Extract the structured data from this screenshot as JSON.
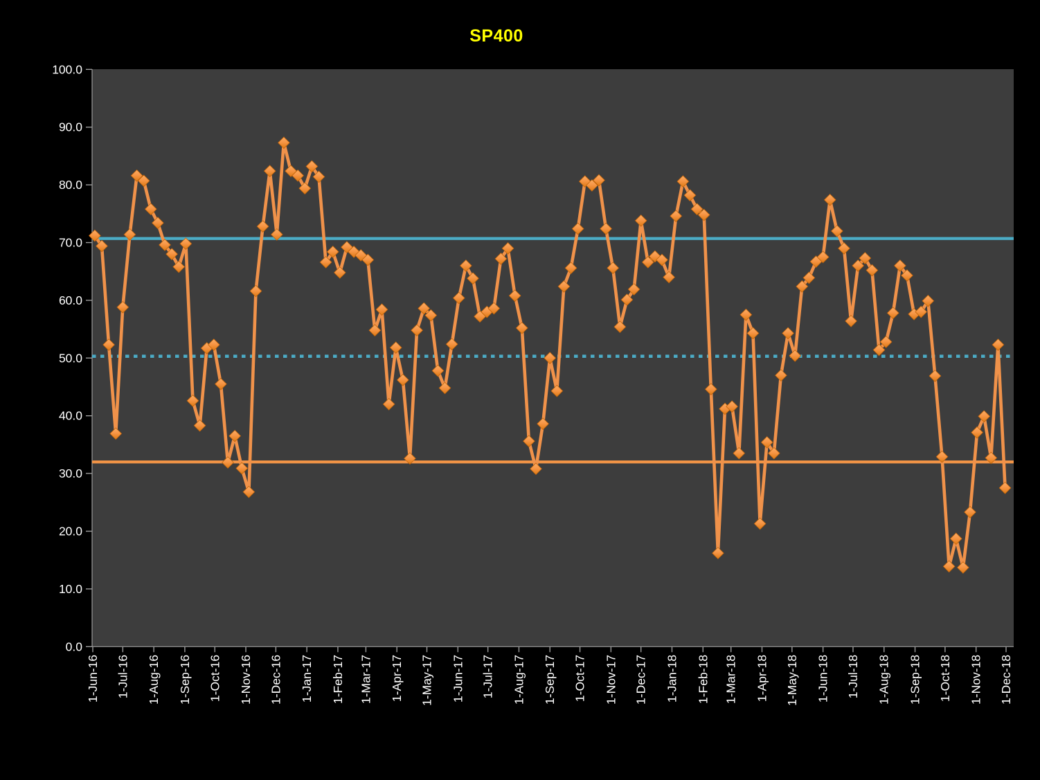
{
  "title": {
    "text": "SP400",
    "color": "#FFFF00"
  },
  "colors": {
    "page_background": "#000000",
    "plot_background": "#3D3D3D",
    "axis_text": "#FFFFFF",
    "axis_line": "#9C9C9C",
    "series_line": "#F0924A",
    "marker_light": "#FBAD66",
    "marker_dark": "#DD7914",
    "marker_stroke": "#C4660A",
    "band_blue": "#4BACC6",
    "band_orange": "#F79646"
  },
  "y_axis": {
    "tick_values": [
      0,
      10,
      20,
      30,
      40,
      50,
      60,
      70,
      80,
      90,
      100
    ],
    "tick_labels": [
      "0.0",
      "10.0",
      "20.0",
      "30.0",
      "40.0",
      "50.0",
      "60.0",
      "70.0",
      "80.0",
      "90.0",
      "100.0"
    ]
  },
  "x_axis": {
    "tick_labels": [
      "1-Jun-16",
      "1-Jul-16",
      "1-Aug-16",
      "1-Sep-16",
      "1-Oct-16",
      "1-Nov-16",
      "1-Dec-16",
      "1-Jan-17",
      "1-Feb-17",
      "1-Mar-17",
      "1-Apr-17",
      "1-May-17",
      "1-Jun-17",
      "1-Jul-17",
      "1-Aug-17",
      "1-Sep-17",
      "1-Oct-17",
      "1-Nov-17",
      "1-Dec-17",
      "1-Jan-18",
      "1-Feb-18",
      "1-Mar-18",
      "1-Apr-18",
      "1-May-18",
      "1-Jun-18",
      "1-Jul-18",
      "1-Aug-18",
      "1-Sep-18",
      "1-Oct-18",
      "1-Nov-18",
      "1-Dec-18"
    ]
  },
  "chart_data": {
    "type": "line",
    "title": "SP400",
    "xlabel": "",
    "ylabel": "",
    "ylim": [
      0,
      100
    ],
    "grid": false,
    "legend_position": "none",
    "series_name": "SP400",
    "start_date": "2016-06-03",
    "interval_days": 7,
    "values": [
      71.2,
      69.4,
      52.3,
      36.9,
      58.8,
      71.4,
      81.6,
      80.7,
      75.8,
      73.4,
      69.6,
      68.0,
      65.8,
      69.8,
      42.6,
      38.3,
      51.7,
      52.3,
      45.5,
      31.9,
      36.5,
      30.9,
      26.8,
      61.6,
      72.8,
      82.4,
      71.4,
      87.3,
      82.4,
      81.6,
      79.4,
      83.2,
      81.4,
      66.6,
      68.4,
      64.8,
      69.2,
      68.4,
      67.8,
      67.0,
      54.8,
      58.4,
      42.0,
      51.8,
      46.2,
      32.6,
      54.8,
      58.6,
      57.4,
      47.8,
      44.8,
      52.4,
      60.4,
      66.0,
      63.8,
      57.2,
      58.0,
      58.6,
      67.2,
      69.0,
      60.8,
      55.2,
      35.6,
      30.8,
      38.6,
      50.0,
      44.3,
      62.4,
      65.6,
      72.4,
      80.6,
      79.9,
      80.8,
      72.4,
      65.6,
      55.4,
      60.1,
      61.9,
      73.8,
      66.6,
      67.6,
      67.0,
      64.0,
      74.6,
      80.6,
      78.2,
      75.8,
      74.8,
      44.6,
      16.2,
      41.2,
      41.6,
      33.5,
      57.5,
      54.3,
      21.3,
      35.4,
      33.5,
      47.0,
      54.3,
      50.4,
      62.4,
      63.9,
      66.7,
      67.5,
      77.4,
      72.0,
      69.0,
      56.4,
      66.0,
      67.3,
      65.2,
      51.4,
      52.8,
      57.8,
      66.0,
      64.3,
      57.6,
      58.0,
      59.9,
      46.9,
      32.9,
      13.9,
      18.7,
      13.7,
      23.3,
      37.1,
      39.9,
      32.7,
      52.3,
      27.5
    ],
    "reference_lines": [
      {
        "name": "upper-band",
        "value": 70.7,
        "style": "solid",
        "color": "#4BACC6"
      },
      {
        "name": "mid-band",
        "value": 50.3,
        "style": "dotted",
        "color": "#4BACC6"
      },
      {
        "name": "lower-band",
        "value": 32.0,
        "style": "solid",
        "color": "#F79646"
      }
    ]
  }
}
